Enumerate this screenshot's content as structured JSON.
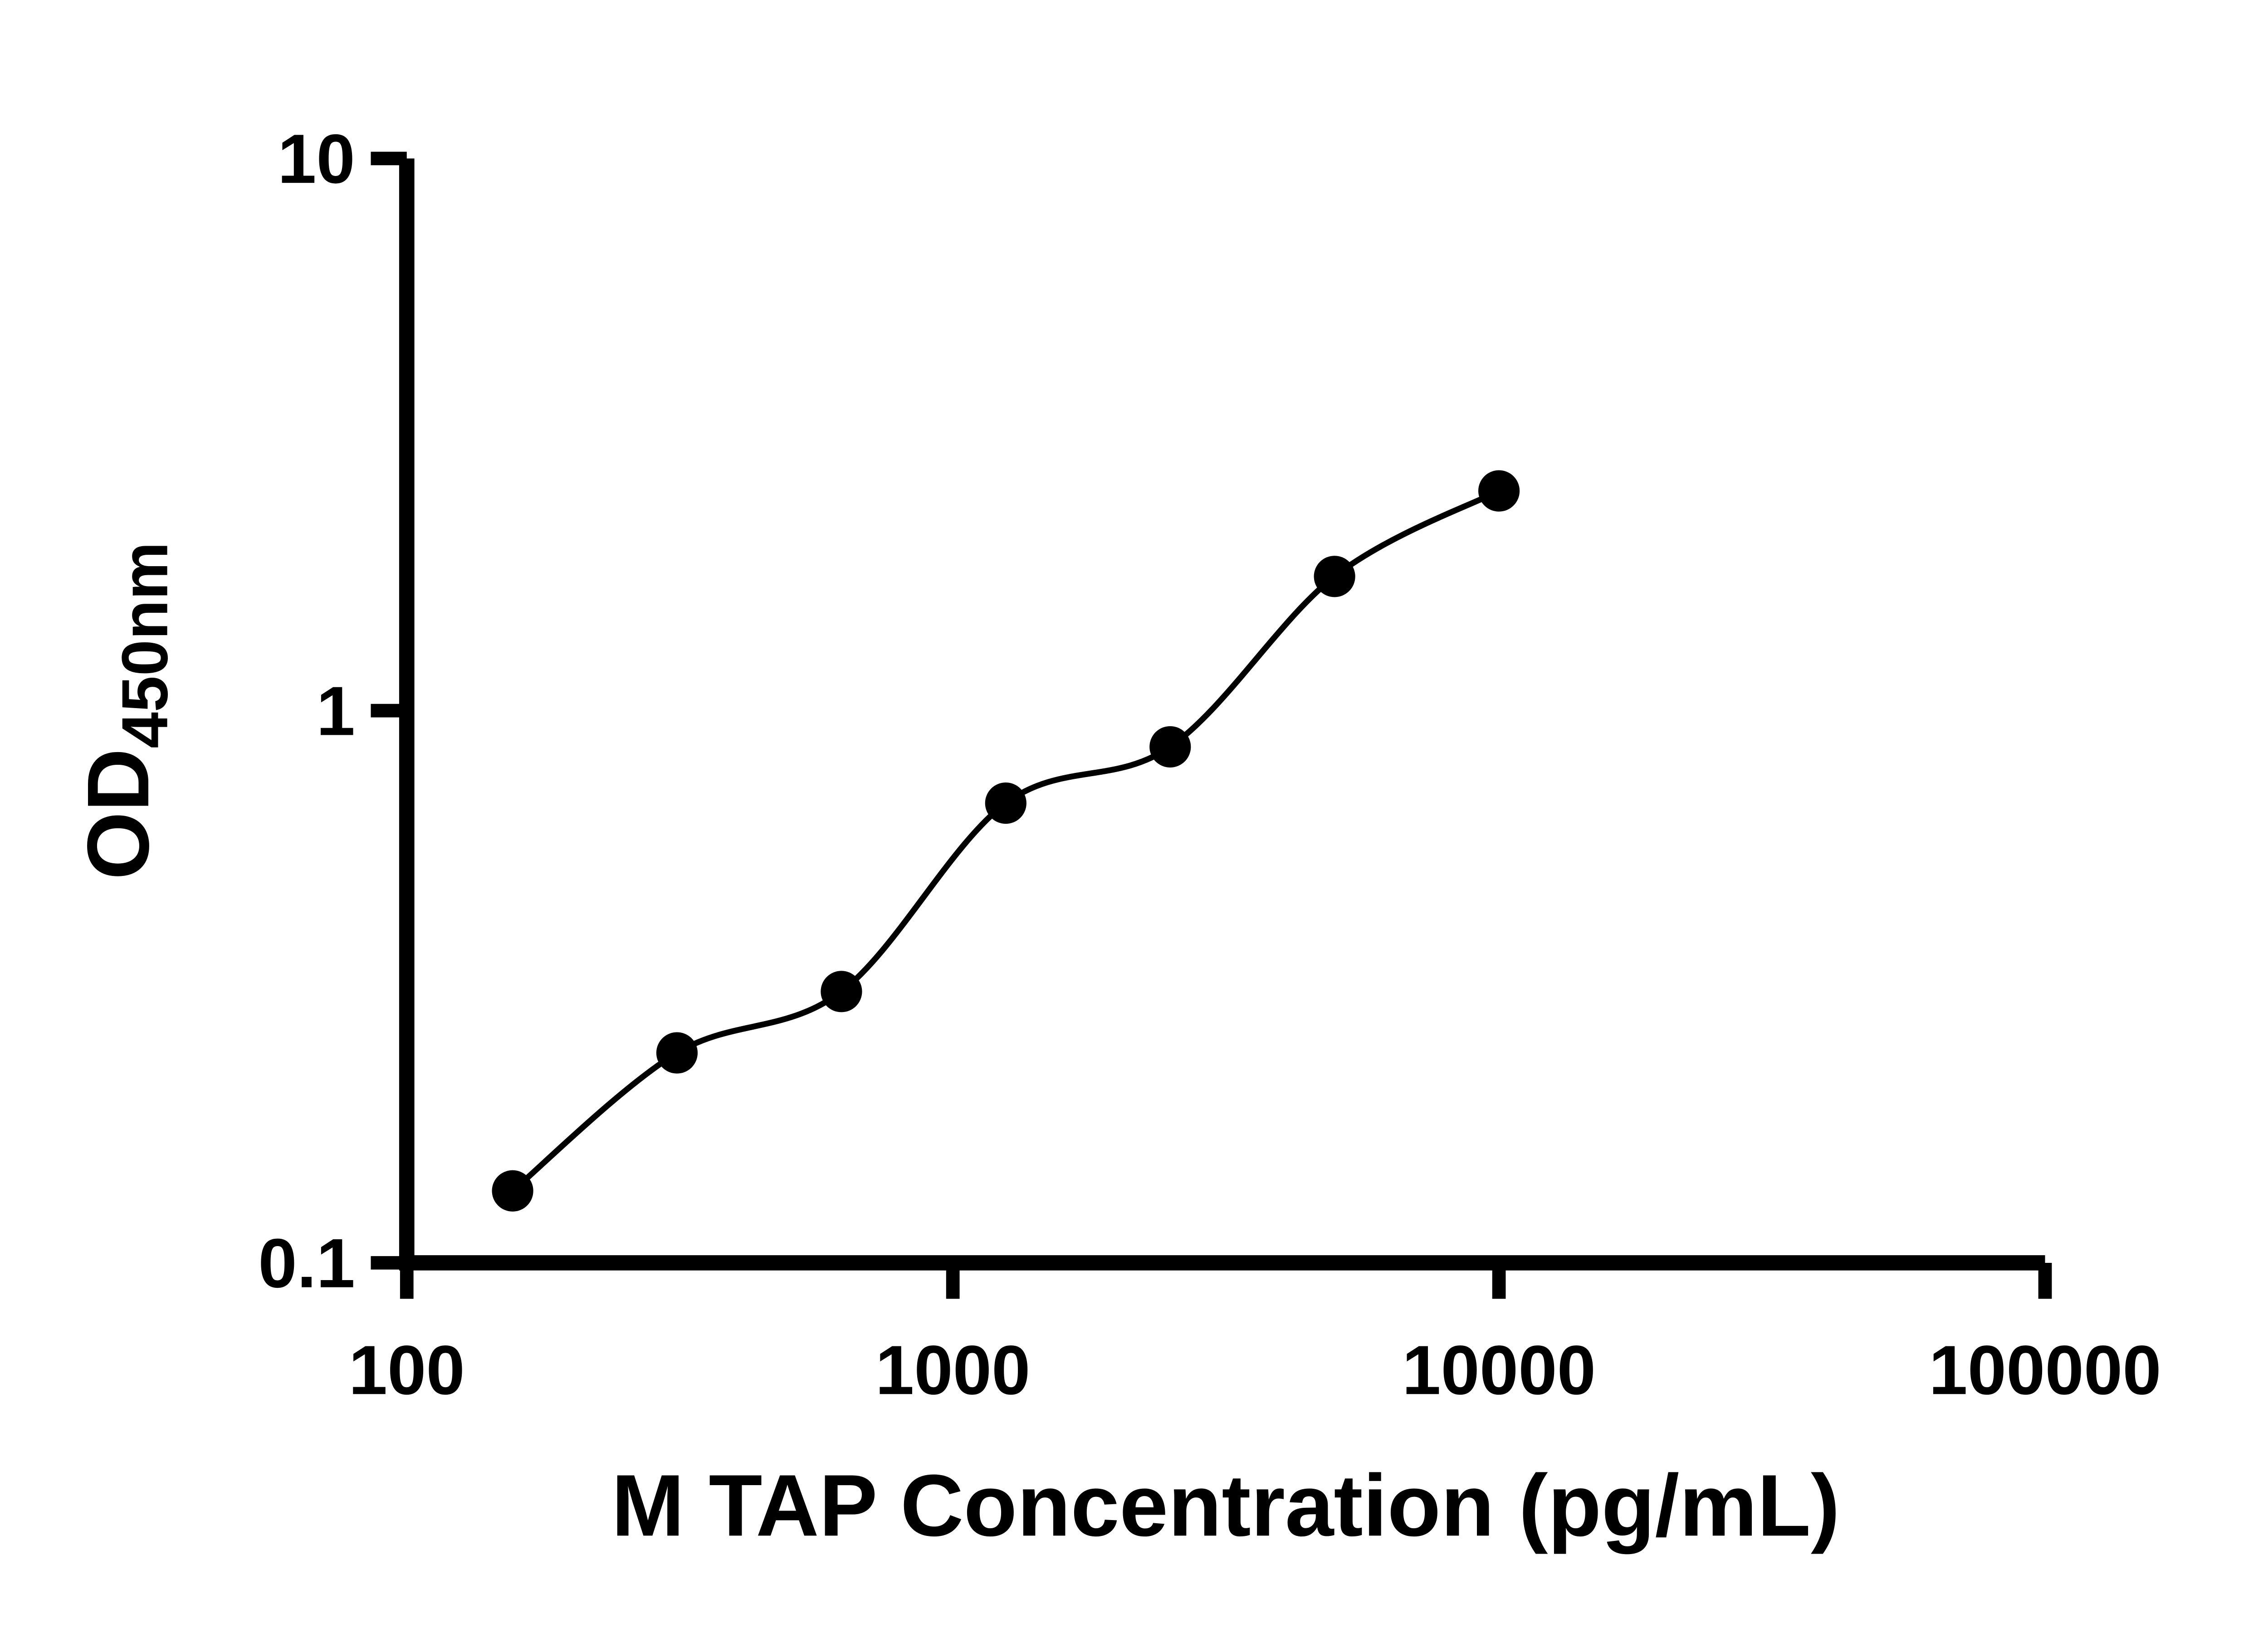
{
  "chart_data": {
    "type": "scatter",
    "title": "",
    "xlabel": "M TAP Concentration (pg/mL)",
    "ylabel_main": "OD",
    "ylabel_sub": "450nm",
    "x_scale": "log10",
    "y_scale": "log10",
    "xlim": [
      100,
      100000
    ],
    "ylim": [
      0.1,
      10
    ],
    "x_ticks": [
      100,
      1000,
      10000,
      100000
    ],
    "x_tick_labels": [
      "100",
      "1000",
      "10000",
      "100000"
    ],
    "y_ticks": [
      10,
      1,
      0.1
    ],
    "y_tick_labels": [
      "10",
      "1",
      "0.1"
    ],
    "grid": false,
    "legend": false,
    "colors": {
      "axis": "#000000",
      "marker": "#000000",
      "curve": "#000000",
      "background": "#ffffff"
    },
    "series": [
      {
        "name": "standard-curve",
        "marker": "filled-circle",
        "points": [
          {
            "x": 156.25,
            "y": 0.135
          },
          {
            "x": 312.5,
            "y": 0.24
          },
          {
            "x": 625,
            "y": 0.31
          },
          {
            "x": 1250,
            "y": 0.68
          },
          {
            "x": 2500,
            "y": 0.86
          },
          {
            "x": 5000,
            "y": 1.75
          },
          {
            "x": 10000,
            "y": 2.5
          }
        ]
      }
    ]
  }
}
